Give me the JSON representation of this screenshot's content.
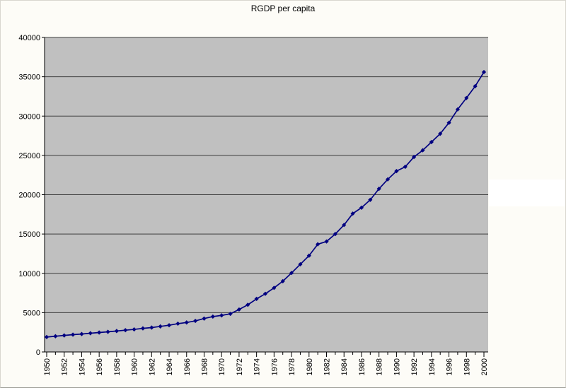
{
  "chart_data": {
    "type": "line",
    "title": "RGDP per capita",
    "xlabel": "",
    "ylabel": "",
    "ylim": [
      0,
      40000
    ],
    "ytick_step": 5000,
    "y_tick_labels": [
      "0",
      "5000",
      "10000",
      "15000",
      "20000",
      "25000",
      "30000",
      "35000",
      "40000"
    ],
    "x_tick_labels": [
      "1950",
      "1952",
      "1954",
      "1956",
      "1958",
      "1960",
      "1962",
      "1964",
      "1966",
      "1968",
      "1970",
      "1972",
      "1974",
      "1976",
      "1978",
      "1980",
      "1982",
      "1984",
      "1986",
      "1988",
      "1990",
      "1992",
      "1994",
      "1996",
      "1998",
      "2000"
    ],
    "grid": "horizontal",
    "legend": "none",
    "marker": "diamond",
    "x": [
      1950,
      1951,
      1952,
      1953,
      1954,
      1955,
      1956,
      1957,
      1958,
      1959,
      1960,
      1961,
      1962,
      1963,
      1964,
      1965,
      1966,
      1967,
      1968,
      1969,
      1970,
      1971,
      1972,
      1973,
      1974,
      1975,
      1976,
      1977,
      1978,
      1979,
      1980,
      1981,
      1982,
      1983,
      1984,
      1985,
      1986,
      1987,
      1988,
      1989,
      1990,
      1991,
      1992,
      1993,
      1994,
      1995,
      1996,
      1997,
      1998,
      1999,
      2000
    ],
    "values": [
      1900,
      2000,
      2100,
      2200,
      2280,
      2380,
      2470,
      2560,
      2660,
      2770,
      2870,
      3000,
      3100,
      3250,
      3400,
      3600,
      3750,
      3950,
      4250,
      4500,
      4650,
      4850,
      5400,
      6000,
      6750,
      7400,
      8150,
      9000,
      10050,
      11150,
      12250,
      13700,
      14050,
      15000,
      16150,
      17600,
      18350,
      19350,
      20750,
      21950,
      23000,
      23550,
      24800,
      25650,
      26700,
      27750,
      29150,
      30850,
      32300,
      33800,
      35600
    ]
  },
  "colors": {
    "page_bg": "#fdfcf7",
    "plot_bg": "#c0c0c0",
    "gridline": "#3c3c3c",
    "axis": "#000000",
    "line": "#000080",
    "marker": "#000080",
    "text": "#000000",
    "artifact_band": "#ffffff"
  }
}
